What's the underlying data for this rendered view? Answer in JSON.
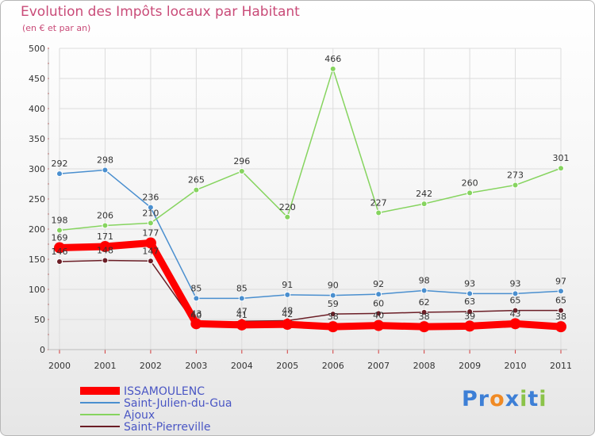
{
  "title": "Evolution des Impôts locaux par Habitant",
  "subtitle": "(en € et par an)",
  "logo": {
    "text": "Proxiti",
    "letters": [
      "P",
      "r",
      "o",
      "x",
      "i",
      "t",
      "i"
    ],
    "colors": [
      "#3d7fd6",
      "#3d7fd6",
      "#f08a24",
      "#3d7fd6",
      "#8bc34a",
      "#3d7fd6",
      "#8bc34a"
    ]
  },
  "chart_data": {
    "type": "line",
    "title": "Evolution des Impôts locaux par Habitant",
    "subtitle": "(en € et par an)",
    "xlabel": "",
    "ylabel": "",
    "categories": [
      "2000",
      "2001",
      "2002",
      "2003",
      "2004",
      "2005",
      "2006",
      "2007",
      "2008",
      "2009",
      "2010",
      "2011"
    ],
    "ylim": [
      0,
      500
    ],
    "yticks": [
      0,
      50,
      100,
      150,
      200,
      250,
      300,
      350,
      400,
      450,
      500
    ],
    "grid": true,
    "legend_position": "bottom-left",
    "series": [
      {
        "name": "ISSAMOULENC",
        "color": "#ff0000",
        "emphasis": true,
        "values": [
          169,
          171,
          177,
          43,
          41,
          42,
          38,
          40,
          38,
          39,
          43,
          38
        ],
        "labels": [
          "169",
          "171",
          "177",
          "43",
          "41",
          "42",
          "38",
          "40",
          "38",
          "39",
          "43",
          "38"
        ]
      },
      {
        "name": "Saint-Julien-du-Gua",
        "color": "#4a8fcf",
        "emphasis": false,
        "values": [
          292,
          298,
          236,
          85,
          85,
          91,
          90,
          92,
          98,
          93,
          93,
          97
        ],
        "labels": [
          "292",
          "298",
          "236",
          "85",
          "85",
          "91",
          "90",
          "92",
          "98",
          "93",
          "93",
          "97"
        ]
      },
      {
        "name": "Ajoux",
        "color": "#86d45f",
        "emphasis": false,
        "values": [
          198,
          206,
          210,
          265,
          296,
          220,
          466,
          227,
          242,
          260,
          273,
          301
        ],
        "labels": [
          "198",
          "206",
          "210",
          "265",
          "296",
          "220",
          "466",
          "227",
          "242",
          "260",
          "273",
          "301"
        ]
      },
      {
        "name": "Saint-Pierreville",
        "color": "#6b1e26",
        "emphasis": false,
        "values": [
          146,
          148,
          147,
          40,
          47,
          48,
          59,
          60,
          62,
          63,
          65,
          65
        ],
        "labels": [
          "146",
          "148",
          "147",
          "40",
          "47",
          "48",
          "59",
          "60",
          "62",
          "63",
          "65",
          "65"
        ]
      }
    ]
  }
}
